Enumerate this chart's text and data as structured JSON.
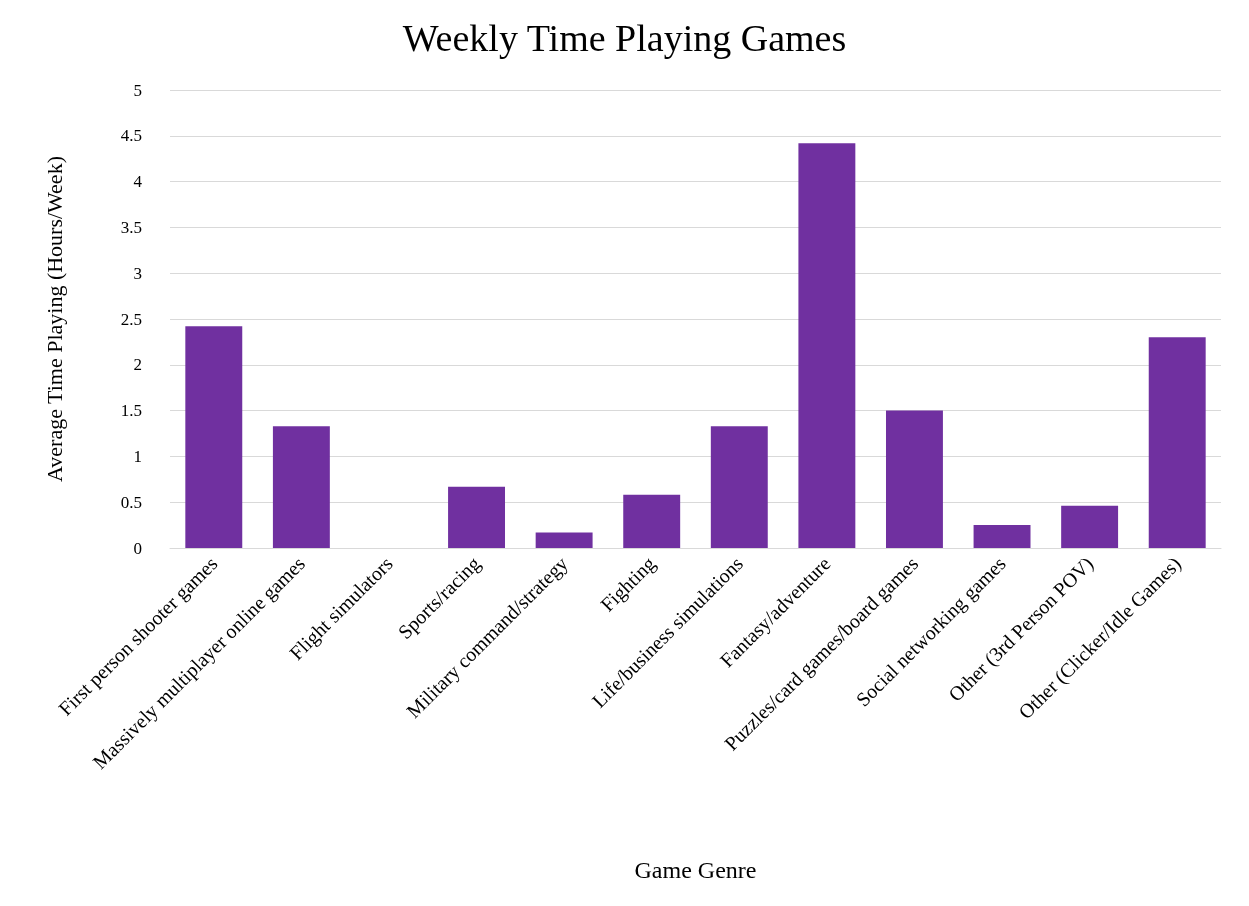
{
  "chart_data": {
    "type": "bar",
    "title": "Weekly Time Playing Games",
    "xlabel": "Game Genre",
    "ylabel": "Average Time Playing (Hours/Week)",
    "categories": [
      "First person shooter games",
      "Massively multiplayer online games",
      "Flight simulators",
      "Sports/racing",
      "Military command/strategy",
      "Fighting",
      "Life/business simulations",
      "Fantasy/adventure",
      "Puzzles/card games/board games",
      "Social networking games",
      "Other (3rd Person POV)",
      "Other (Clicker/Idle Games)"
    ],
    "values": [
      2.42,
      1.33,
      0,
      0.67,
      0.17,
      0.58,
      1.33,
      4.42,
      1.5,
      0.25,
      0.46,
      2.3
    ],
    "color": "#7030a0",
    "ylim": [
      0,
      5
    ],
    "yticks": [
      0,
      0.5,
      1,
      1.5,
      2,
      2.5,
      3,
      3.5,
      4,
      4.5,
      5
    ],
    "grid": "y"
  }
}
